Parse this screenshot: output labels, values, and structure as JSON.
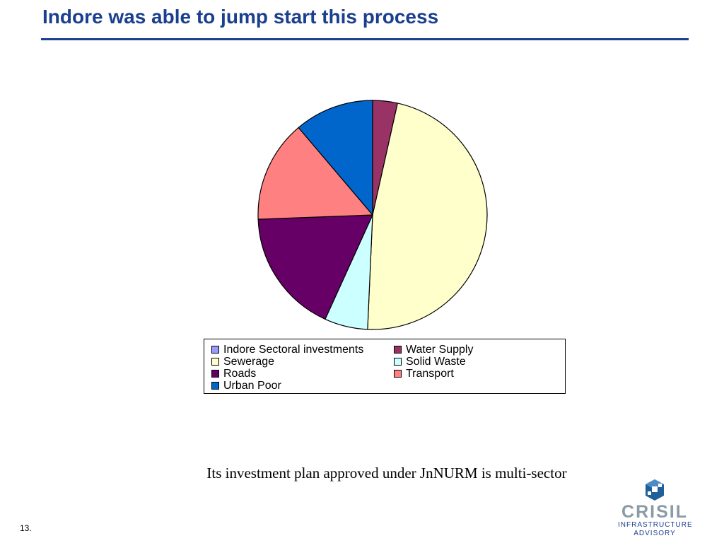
{
  "slide": {
    "title": "Indore was able to jump start this process",
    "caption": "Its investment plan approved under JnNURM is multi-sector",
    "page_number": "13."
  },
  "logo": {
    "wordmark": "CRISIL",
    "line1": "INFRASTRUCTURE",
    "line2": "ADVISORY"
  },
  "chart_data": {
    "type": "pie",
    "start_angle": "12 o'clock, clockwise",
    "legend_position": "bottom",
    "slices": [
      {
        "label": "Indore Sectoral investments",
        "value": 0,
        "color": "#9999ff"
      },
      {
        "label": "Water Supply",
        "value": 3.5,
        "color": "#993366"
      },
      {
        "label": "Sewerage",
        "value": 47.2,
        "color": "#ffffcc"
      },
      {
        "label": "Solid Waste",
        "value": 6.1,
        "color": "#ccffff"
      },
      {
        "label": "Roads",
        "value": 17.6,
        "color": "#660066"
      },
      {
        "label": "Transport",
        "value": 14.4,
        "color": "#ff8080"
      },
      {
        "label": "Urban Poor",
        "value": 11.2,
        "color": "#0066cc"
      }
    ]
  }
}
